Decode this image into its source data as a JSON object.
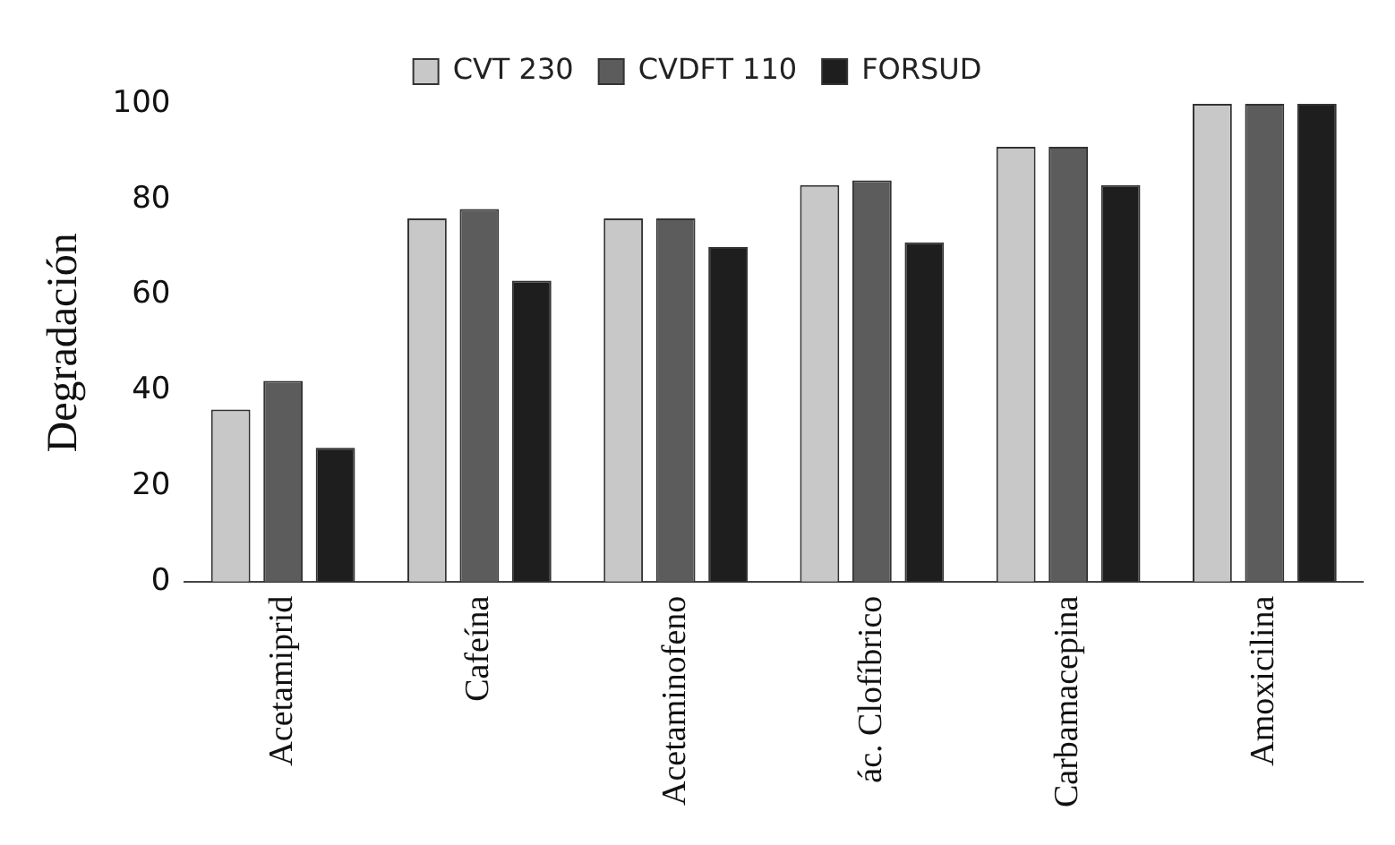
{
  "chart_data": {
    "type": "bar",
    "ylabel": "Degradación",
    "categories": [
      "Acetamiprid",
      "Cafeína",
      "Acetaminofeno",
      "ác. Clofíbrico",
      "Carbamacepina",
      "Amoxicilina"
    ],
    "series": [
      {
        "name": "CVT 230",
        "color": "#c8c8c8",
        "values": [
          36,
          76,
          76,
          83,
          91,
          100
        ]
      },
      {
        "name": "CVDFT 110",
        "color": "#5c5c5c",
        "values": [
          42,
          78,
          76,
          84,
          91,
          100
        ]
      },
      {
        "name": "FORSUD",
        "color": "#1e1e1e",
        "values": [
          28,
          63,
          70,
          71,
          83,
          100
        ]
      }
    ],
    "ylim": [
      0,
      100
    ],
    "yticks": [
      0,
      20,
      40,
      60,
      80,
      100
    ],
    "grid": false,
    "legend": "top"
  }
}
